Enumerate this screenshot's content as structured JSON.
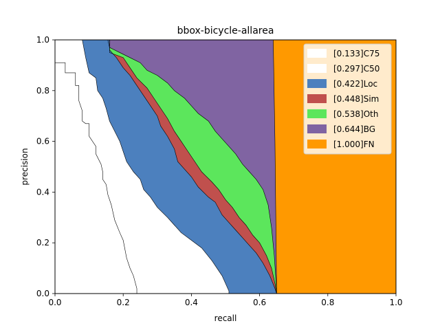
{
  "chart_data": {
    "type": "area",
    "title": "bbox-bicycle-allarea",
    "xlabel": "recall",
    "ylabel": "precision",
    "xlim": [
      0,
      1
    ],
    "ylim": [
      0,
      1
    ],
    "xticks": [
      "0.0",
      "0.2",
      "0.4",
      "0.6",
      "0.8",
      "1.0"
    ],
    "yticks": [
      "0.0",
      "0.2",
      "0.4",
      "0.6",
      "0.8",
      "1.0"
    ],
    "grid": false,
    "legend_position": "top-right",
    "series": [
      {
        "name": "[0.133]C75",
        "color": "#ffffff",
        "points": [
          [
            0,
            1.0
          ],
          [
            0,
            0.91
          ],
          [
            0.03,
            0.91
          ],
          [
            0.03,
            0.87
          ],
          [
            0.06,
            0.87
          ],
          [
            0.06,
            0.82
          ],
          [
            0.07,
            0.82
          ],
          [
            0.07,
            0.76
          ],
          [
            0.08,
            0.72
          ],
          [
            0.08,
            0.68
          ],
          [
            0.09,
            0.67
          ],
          [
            0.1,
            0.67
          ],
          [
            0.1,
            0.62
          ],
          [
            0.12,
            0.58
          ],
          [
            0.12,
            0.55
          ],
          [
            0.135,
            0.51
          ],
          [
            0.14,
            0.48
          ],
          [
            0.14,
            0.45
          ],
          [
            0.15,
            0.43
          ],
          [
            0.155,
            0.39
          ],
          [
            0.165,
            0.35
          ],
          [
            0.175,
            0.29
          ],
          [
            0.19,
            0.24
          ],
          [
            0.2,
            0.21
          ],
          [
            0.21,
            0.14
          ],
          [
            0.22,
            0.1
          ],
          [
            0.23,
            0.07
          ],
          [
            0.24,
            0.02
          ],
          [
            0.24,
            0.0
          ]
        ]
      },
      {
        "name": "[0.297]C50",
        "color": "#ffffff",
        "points": [
          [
            0,
            1.0
          ],
          [
            0.08,
            1.0
          ],
          [
            0.09,
            0.93
          ],
          [
            0.1,
            0.87
          ],
          [
            0.12,
            0.85
          ],
          [
            0.125,
            0.8
          ],
          [
            0.14,
            0.77
          ],
          [
            0.15,
            0.73
          ],
          [
            0.16,
            0.68
          ],
          [
            0.175,
            0.64
          ],
          [
            0.19,
            0.6
          ],
          [
            0.2,
            0.56
          ],
          [
            0.21,
            0.52
          ],
          [
            0.23,
            0.48
          ],
          [
            0.25,
            0.45
          ],
          [
            0.26,
            0.41
          ],
          [
            0.28,
            0.38
          ],
          [
            0.3,
            0.34
          ],
          [
            0.33,
            0.3
          ],
          [
            0.35,
            0.27
          ],
          [
            0.37,
            0.24
          ],
          [
            0.4,
            0.21
          ],
          [
            0.43,
            0.18
          ],
          [
            0.46,
            0.13
          ],
          [
            0.49,
            0.07
          ],
          [
            0.51,
            0.01
          ],
          [
            0.51,
            0.0
          ]
        ]
      },
      {
        "name": "[0.422]Loc",
        "color": "#4c80be",
        "points": [
          [
            0,
            1.0
          ],
          [
            0.16,
            1.0
          ],
          [
            0.16,
            0.96
          ],
          [
            0.18,
            0.93
          ],
          [
            0.2,
            0.89
          ],
          [
            0.22,
            0.86
          ],
          [
            0.24,
            0.82
          ],
          [
            0.26,
            0.78
          ],
          [
            0.28,
            0.74
          ],
          [
            0.3,
            0.7
          ],
          [
            0.31,
            0.66
          ],
          [
            0.33,
            0.62
          ],
          [
            0.35,
            0.57
          ],
          [
            0.36,
            0.52
          ],
          [
            0.38,
            0.49
          ],
          [
            0.4,
            0.46
          ],
          [
            0.42,
            0.42
          ],
          [
            0.45,
            0.38
          ],
          [
            0.47,
            0.36
          ],
          [
            0.49,
            0.31
          ],
          [
            0.51,
            0.28
          ],
          [
            0.53,
            0.25
          ],
          [
            0.55,
            0.22
          ],
          [
            0.57,
            0.19
          ],
          [
            0.59,
            0.16
          ],
          [
            0.61,
            0.12
          ],
          [
            0.63,
            0.07
          ],
          [
            0.645,
            0.02
          ],
          [
            0.65,
            0.0
          ]
        ]
      },
      {
        "name": "[0.448]Sim",
        "color": "#c0504d",
        "points": [
          [
            0,
            1.0
          ],
          [
            0.16,
            1.0
          ],
          [
            0.16,
            0.95
          ],
          [
            0.2,
            0.93
          ],
          [
            0.22,
            0.89
          ],
          [
            0.24,
            0.85
          ],
          [
            0.27,
            0.81
          ],
          [
            0.29,
            0.77
          ],
          [
            0.31,
            0.73
          ],
          [
            0.33,
            0.69
          ],
          [
            0.35,
            0.64
          ],
          [
            0.37,
            0.6
          ],
          [
            0.39,
            0.56
          ],
          [
            0.41,
            0.52
          ],
          [
            0.43,
            0.48
          ],
          [
            0.46,
            0.44
          ],
          [
            0.48,
            0.41
          ],
          [
            0.5,
            0.37
          ],
          [
            0.52,
            0.34
          ],
          [
            0.54,
            0.3
          ],
          [
            0.56,
            0.27
          ],
          [
            0.58,
            0.23
          ],
          [
            0.6,
            0.2
          ],
          [
            0.62,
            0.15
          ],
          [
            0.635,
            0.1
          ],
          [
            0.645,
            0.04
          ],
          [
            0.65,
            0.0
          ]
        ]
      },
      {
        "name": "[0.538]Oth",
        "color": "#5ce65c",
        "points": [
          [
            0,
            1.0
          ],
          [
            0.155,
            1.0
          ],
          [
            0.16,
            0.97
          ],
          [
            0.19,
            0.95
          ],
          [
            0.22,
            0.93
          ],
          [
            0.25,
            0.91
          ],
          [
            0.27,
            0.88
          ],
          [
            0.3,
            0.86
          ],
          [
            0.33,
            0.83
          ],
          [
            0.35,
            0.8
          ],
          [
            0.38,
            0.77
          ],
          [
            0.4,
            0.74
          ],
          [
            0.42,
            0.71
          ],
          [
            0.45,
            0.68
          ],
          [
            0.47,
            0.64
          ],
          [
            0.49,
            0.61
          ],
          [
            0.51,
            0.58
          ],
          [
            0.53,
            0.55
          ],
          [
            0.55,
            0.51
          ],
          [
            0.57,
            0.48
          ],
          [
            0.59,
            0.45
          ],
          [
            0.61,
            0.41
          ],
          [
            0.625,
            0.35
          ],
          [
            0.635,
            0.26
          ],
          [
            0.643,
            0.15
          ],
          [
            0.648,
            0.05
          ],
          [
            0.65,
            0.0
          ]
        ]
      },
      {
        "name": "[0.644]BG",
        "color": "#8064a2",
        "points": [
          [
            0,
            1.0
          ],
          [
            0.64,
            1.0
          ],
          [
            0.645,
            0.6
          ],
          [
            0.65,
            0.0
          ]
        ]
      },
      {
        "name": "[1.000]FN",
        "color": "#ff9900",
        "points": [
          [
            0,
            1.0
          ],
          [
            1.0,
            1.0
          ],
          [
            1.0,
            0.0
          ]
        ]
      }
    ]
  }
}
